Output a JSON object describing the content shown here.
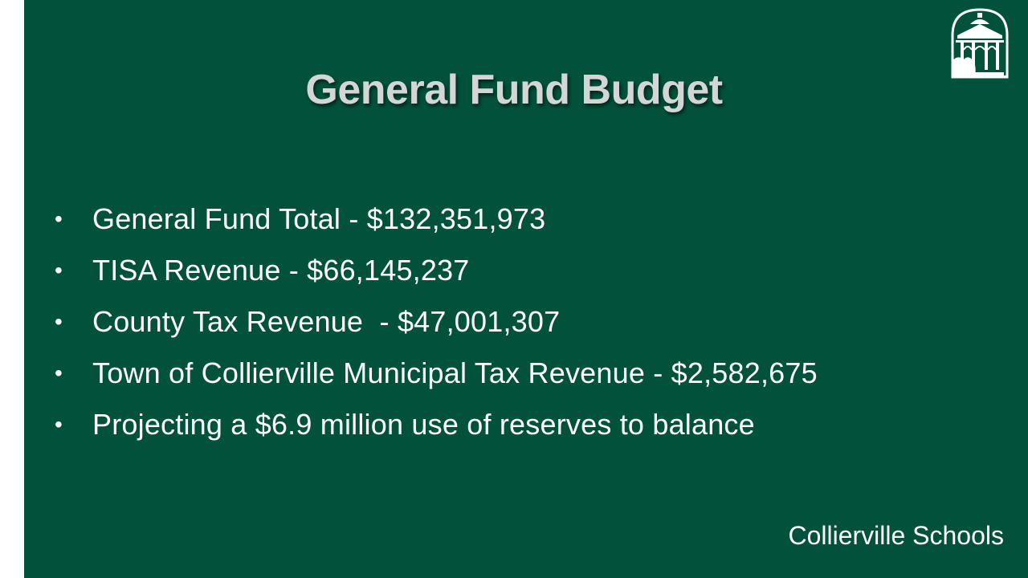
{
  "slide": {
    "title": "General Fund Budget",
    "background_color": "#02513b",
    "bullets": [
      {
        "marker": "•",
        "text": "General Fund Total - $132,351,973"
      },
      {
        "marker": "•",
        "text": "TISA Revenue - $66,145,237"
      },
      {
        "marker": "•",
        "text": "County Tax Revenue  - $47,001,307"
      },
      {
        "marker": "•",
        "text": "Town of Collierville Municipal Tax Revenue - $2,582,675"
      },
      {
        "marker": "•",
        "text": "Projecting a $6.9 million use of reserves to balance"
      }
    ],
    "footer": "Collierville Schools",
    "logo_icon": "gazebo-logo-icon"
  }
}
